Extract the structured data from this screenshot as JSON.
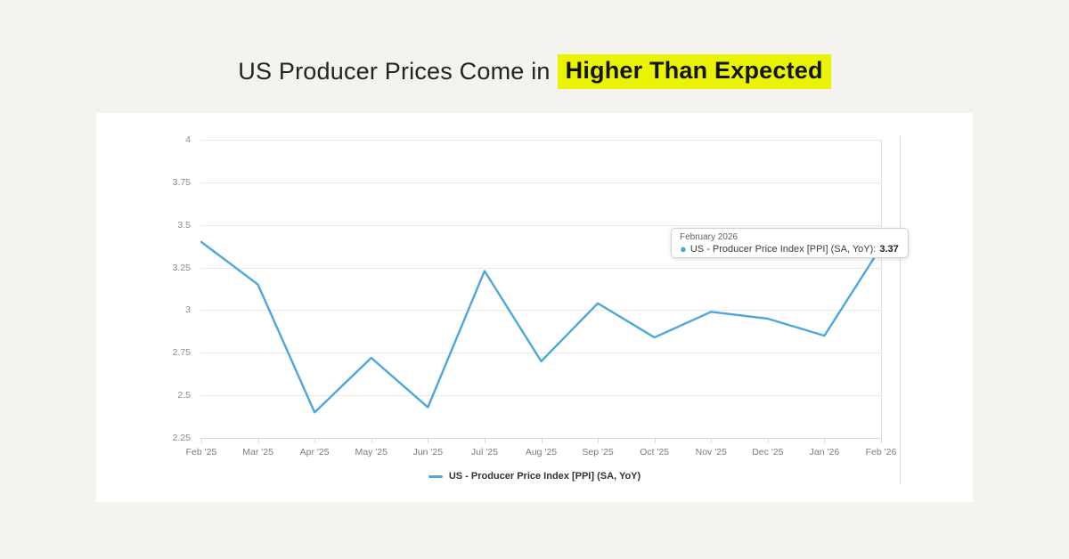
{
  "page": {
    "background": "#f4f3ef"
  },
  "title": {
    "normal": "US Producer Prices Come in",
    "highlight": "Higher Than Expected",
    "highlight_color": "#eaf400"
  },
  "chart_data": {
    "type": "line",
    "title": "US - Producer Price Index [PPI] (SA, YoY)",
    "categories": [
      "Feb '25",
      "Mar '25",
      "Apr '25",
      "May '25",
      "Jun '25",
      "Jul '25",
      "Aug '25",
      "Sep '25",
      "Oct '25",
      "Nov '25",
      "Dec '25",
      "Jan '26",
      "Feb '26"
    ],
    "series": [
      {
        "name": "US - Producer Price Index [PPI] (SA, YoY)",
        "color": "#4da7dc",
        "values": [
          3.4,
          3.15,
          2.4,
          2.72,
          2.43,
          3.23,
          2.7,
          3.04,
          2.84,
          2.99,
          2.95,
          2.85,
          3.37
        ]
      }
    ],
    "xlabel": "",
    "ylabel": "",
    "ylim": [
      2.25,
      4
    ],
    "yticks": [
      {
        "value": 4,
        "label": "4"
      },
      {
        "value": 3.75,
        "label": "3.75"
      },
      {
        "value": 3.5,
        "label": "3.5"
      },
      {
        "value": 3.25,
        "label": "3.25"
      },
      {
        "value": 3,
        "label": "3"
      },
      {
        "value": 2.75,
        "label": "2.75"
      },
      {
        "value": 2.5,
        "label": "2.5"
      },
      {
        "value": 2.25,
        "label": "2.25"
      }
    ],
    "grid": "horizontal",
    "legend_position": "bottom-center",
    "tooltip": {
      "title": "February 2026",
      "series_label": "US - Producer Price Index [PPI] (SA, YoY):",
      "value": "3.37",
      "marker_color": "#4da7dc"
    }
  }
}
